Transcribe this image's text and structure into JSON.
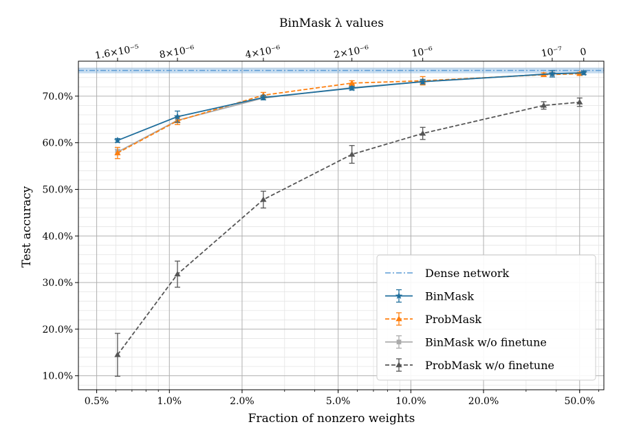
{
  "chart_data": {
    "type": "line",
    "xscale": "log",
    "xlim": [
      0.0042,
      0.63
    ],
    "ylim": [
      7.0,
      77.5
    ],
    "xlabel": "Fraction of nonzero weights",
    "ylabel": "Test accuracy",
    "top_axis_label": "BinMask λ values",
    "x_ticks": [
      {
        "value": 0.005,
        "label": "0.5%"
      },
      {
        "value": 0.01,
        "label": "1.0%"
      },
      {
        "value": 0.02,
        "label": "2.0%"
      },
      {
        "value": 0.05,
        "label": "5.0%"
      },
      {
        "value": 0.1,
        "label": "10.0%"
      },
      {
        "value": 0.2,
        "label": "20.0%"
      },
      {
        "value": 0.5,
        "label": "50.0%"
      }
    ],
    "y_ticks": [
      {
        "value": 10,
        "label": "10.0%"
      },
      {
        "value": 20,
        "label": "20.0%"
      },
      {
        "value": 30,
        "label": "30.0%"
      },
      {
        "value": 40,
        "label": "40.0%"
      },
      {
        "value": 50,
        "label": "50.0%"
      },
      {
        "value": 60,
        "label": "60.0%"
      },
      {
        "value": 70,
        "label": "70.0%"
      }
    ],
    "top_ticks": [
      {
        "x": 0.0061,
        "label": "1.6×10⁻⁵"
      },
      {
        "x": 0.0108,
        "label": "8×10⁻⁶"
      },
      {
        "x": 0.0245,
        "label": "4×10⁻⁶"
      },
      {
        "x": 0.057,
        "label": "2×10⁻⁶"
      },
      {
        "x": 0.112,
        "label": "10⁻⁶"
      },
      {
        "x": 0.385,
        "label": "10⁻⁷"
      },
      {
        "x": 0.52,
        "label": "0"
      }
    ],
    "dense_network": {
      "name": "Dense network",
      "value": 75.5,
      "band": [
        74.9,
        76.1
      ],
      "color": "#5b9bd5"
    },
    "series": [
      {
        "name": "ProbMask w/o finetune",
        "color": "#555555",
        "dashed": true,
        "marker": "triangle",
        "x": [
          0.0061,
          0.0108,
          0.0245,
          0.057,
          0.112,
          0.355,
          0.5
        ],
        "y": [
          14.5,
          31.8,
          47.8,
          57.5,
          62.0,
          68.0,
          68.7
        ],
        "err": [
          4.6,
          2.8,
          1.8,
          1.9,
          1.3,
          0.8,
          0.9
        ]
      },
      {
        "name": "BinMask w/o finetune",
        "color": "#aaaaaa",
        "dashed": false,
        "marker": "square",
        "x": [
          0.0061,
          0.0108,
          0.0245,
          0.057,
          0.112,
          0.385,
          0.52
        ],
        "y": [
          58.0,
          64.8,
          69.6,
          71.8,
          73.1,
          74.8,
          75.0
        ],
        "err": [
          0.6,
          0.5,
          0.4,
          0.4,
          0.4,
          0.3,
          0.3
        ]
      },
      {
        "name": "ProbMask",
        "color": "#ff7f0e",
        "dashed": true,
        "marker": "triangle",
        "x": [
          0.0061,
          0.0108,
          0.0245,
          0.057,
          0.112,
          0.355,
          0.5
        ],
        "y": [
          57.8,
          64.7,
          70.2,
          72.8,
          73.3,
          74.6,
          74.8
        ],
        "err": [
          1.2,
          0.8,
          0.6,
          0.5,
          0.9,
          0.4,
          0.3
        ]
      },
      {
        "name": "BinMask",
        "color": "#1f6e9c",
        "dashed": false,
        "marker": "star",
        "x": [
          0.0061,
          0.0108,
          0.0245,
          0.057,
          0.112,
          0.385,
          0.52
        ],
        "y": [
          60.5,
          65.6,
          69.7,
          71.7,
          73.1,
          74.8,
          75.0
        ],
        "err": [
          0.4,
          1.2,
          0.5,
          0.4,
          0.5,
          0.7,
          0.4
        ]
      }
    ],
    "legend": {
      "placement": "lower-right",
      "entries": [
        "Dense network",
        "BinMask",
        "ProbMask",
        "BinMask w/o finetune",
        "ProbMask w/o finetune"
      ]
    }
  }
}
